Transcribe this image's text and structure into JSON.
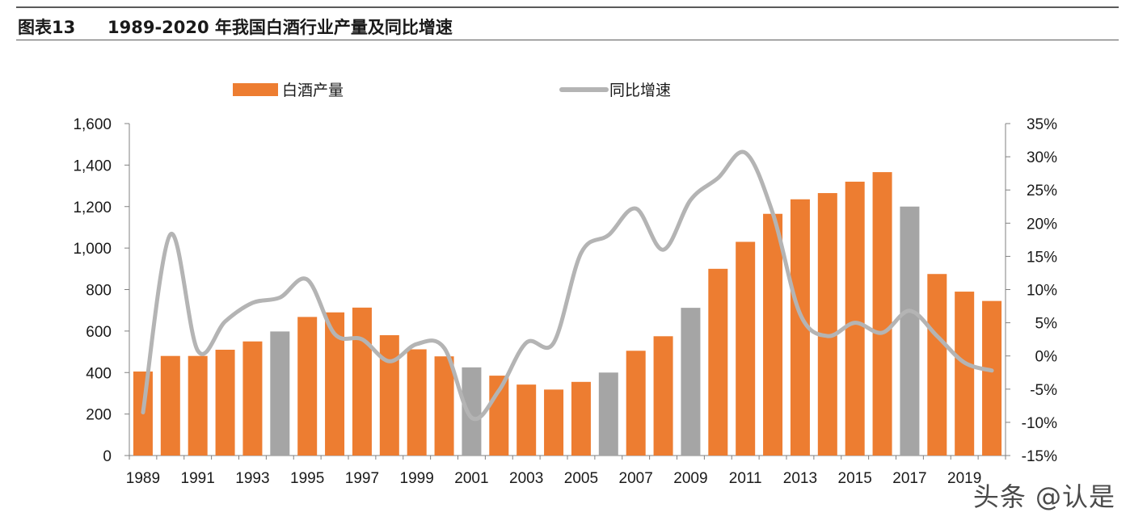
{
  "figure": {
    "label": "图表13",
    "title": "1989-2020 年我国白酒行业产量及同比增速"
  },
  "watermark": "头条 @认是",
  "chart_data": {
    "type": "bar+line",
    "title": "1989-2020 年我国白酒行业产量及同比增速",
    "legend_position": "top",
    "grid": false,
    "categories": [
      1989,
      1990,
      1991,
      1992,
      1993,
      1994,
      1995,
      1996,
      1997,
      1998,
      1999,
      2000,
      2001,
      2002,
      2003,
      2004,
      2005,
      2006,
      2007,
      2008,
      2009,
      2010,
      2011,
      2012,
      2013,
      2014,
      2015,
      2016,
      2017,
      2018,
      2019,
      2020
    ],
    "x_tick_labels": [
      "1989",
      "1991",
      "1993",
      "1995",
      "1997",
      "1999",
      "2001",
      "2003",
      "2005",
      "2007",
      "2009",
      "2011",
      "2013",
      "2015",
      "2017",
      "2019"
    ],
    "y_left": {
      "ylim": [
        0,
        1600
      ],
      "ticks": [
        "0",
        "200",
        "400",
        "600",
        "800",
        "1,000",
        "1,200",
        "1,400",
        "1,600"
      ]
    },
    "y_right": {
      "ylim": [
        -15,
        35
      ],
      "ticks": [
        "-15%",
        "-10%",
        "-5%",
        "0%",
        "5%",
        "10%",
        "15%",
        "20%",
        "25%",
        "30%",
        "35%"
      ]
    },
    "series": [
      {
        "name": "白酒产量",
        "type": "bar",
        "axis": "left",
        "color": "#ED7D31",
        "highlight_color": "#A5A5A5",
        "highlight_years": [
          1994,
          2001,
          2006,
          2009,
          2017
        ],
        "values": [
          405,
          480,
          480,
          510,
          550,
          598,
          668,
          690,
          713,
          580,
          512,
          478,
          425,
          385,
          342,
          318,
          355,
          400,
          505,
          575,
          712,
          900,
          1030,
          1165,
          1235,
          1265,
          1320,
          1366,
          1200,
          875,
          790,
          745
        ]
      },
      {
        "name": "同比增速",
        "type": "line",
        "axis": "right",
        "color": "#B4B4B4",
        "values": [
          -8.5,
          18.3,
          0.8,
          5.2,
          8.0,
          8.8,
          11.5,
          3.3,
          2.5,
          -0.8,
          1.8,
          1.2,
          -9.3,
          -5.2,
          2.0,
          2.0,
          15.5,
          18.2,
          22.2,
          16.0,
          23.5,
          26.8,
          30.6,
          21.5,
          6.3,
          3.0,
          5.0,
          3.5,
          6.8,
          3.0,
          -1.0,
          -2.2
        ]
      }
    ]
  }
}
